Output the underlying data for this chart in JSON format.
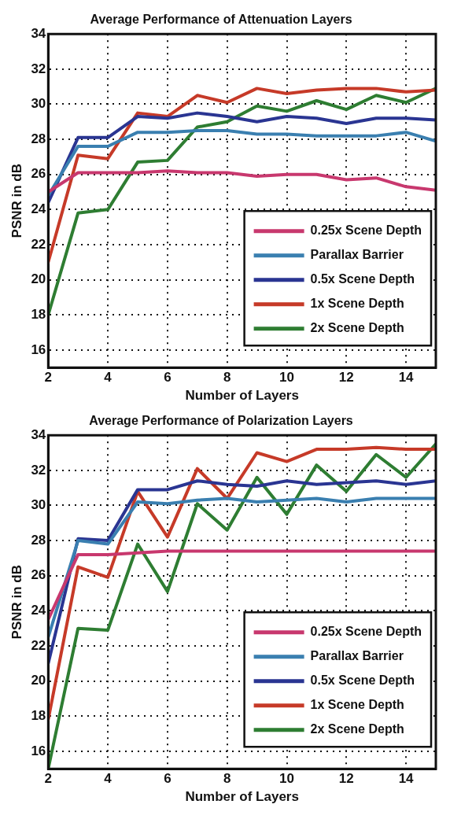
{
  "chart_data": [
    {
      "type": "line",
      "title": "Average Performance of Attenuation Layers",
      "xlabel": "Number of Layers",
      "ylabel": "PSNR in dB",
      "x": [
        2,
        3,
        4,
        5,
        6,
        7,
        8,
        9,
        10,
        11,
        12,
        13,
        14,
        15
      ],
      "xlim": [
        2,
        15
      ],
      "xticks": [
        2,
        4,
        6,
        8,
        10,
        12,
        14
      ],
      "ylim": [
        15,
        34
      ],
      "yticks": [
        16,
        18,
        20,
        22,
        24,
        26,
        28,
        30,
        32,
        34
      ],
      "grid": true,
      "legend": "bottom right",
      "marker": "none",
      "line_style": "solid",
      "series": [
        {
          "name": "0.25x Scene Depth",
          "color": "#c8386e",
          "values": [
            25.0,
            26.1,
            26.1,
            26.1,
            26.2,
            26.1,
            26.1,
            25.9,
            26.0,
            26.0,
            25.7,
            25.8,
            25.3,
            25.1
          ]
        },
        {
          "name": "Parallax Barrier",
          "color": "#3a7fb0",
          "values": [
            24.8,
            27.6,
            27.6,
            28.4,
            28.4,
            28.5,
            28.5,
            28.3,
            28.3,
            28.2,
            28.2,
            28.2,
            28.4,
            27.9
          ]
        },
        {
          "name": "0.5x Scene Depth",
          "color": "#2a3592",
          "values": [
            24.4,
            28.1,
            28.1,
            29.3,
            29.2,
            29.5,
            29.3,
            29.0,
            29.3,
            29.2,
            28.9,
            29.2,
            29.2,
            29.1
          ]
        },
        {
          "name": "1x Scene Depth",
          "color": "#c63a28",
          "values": [
            21.0,
            27.1,
            26.9,
            29.5,
            29.3,
            30.5,
            30.1,
            30.9,
            30.6,
            30.8,
            30.9,
            30.9,
            30.7,
            30.8
          ]
        },
        {
          "name": "2x Scene Depth",
          "color": "#2e7d32",
          "values": [
            18.0,
            23.8,
            24.0,
            26.7,
            26.8,
            28.7,
            29.0,
            29.9,
            29.6,
            30.2,
            29.7,
            30.5,
            30.1,
            30.9
          ]
        }
      ]
    },
    {
      "type": "line",
      "title": "Average Performance of Polarization Layers",
      "xlabel": "Number of Layers",
      "ylabel": "PSNR in dB",
      "x": [
        2,
        3,
        4,
        5,
        6,
        7,
        8,
        9,
        10,
        11,
        12,
        13,
        14,
        15
      ],
      "xlim": [
        2,
        15
      ],
      "xticks": [
        2,
        4,
        6,
        8,
        10,
        12,
        14
      ],
      "ylim": [
        15,
        34
      ],
      "yticks": [
        16,
        18,
        20,
        22,
        24,
        26,
        28,
        30,
        32,
        34
      ],
      "grid": true,
      "legend": "bottom right",
      "marker": "none",
      "line_style": "solid",
      "series": [
        {
          "name": "0.25x Scene Depth",
          "color": "#c8386e",
          "values": [
            23.5,
            27.2,
            27.2,
            27.3,
            27.4,
            27.4,
            27.4,
            27.4,
            27.4,
            27.4,
            27.4,
            27.4,
            27.4,
            27.4
          ]
        },
        {
          "name": "Parallax Barrier",
          "color": "#3a7fb0",
          "values": [
            22.5,
            28.0,
            27.8,
            30.2,
            30.1,
            30.3,
            30.4,
            30.2,
            30.3,
            30.4,
            30.2,
            30.4,
            30.4,
            30.4
          ]
        },
        {
          "name": "0.5x Scene Depth",
          "color": "#2a3592",
          "values": [
            21.0,
            28.1,
            28.0,
            30.9,
            30.9,
            31.4,
            31.2,
            31.1,
            31.4,
            31.2,
            31.3,
            31.4,
            31.2,
            31.4
          ]
        },
        {
          "name": "1x Scene Depth",
          "color": "#c63a28",
          "values": [
            17.8,
            26.5,
            25.9,
            30.8,
            28.2,
            32.1,
            30.4,
            33.0,
            32.5,
            33.2,
            33.2,
            33.3,
            33.2,
            33.2
          ]
        },
        {
          "name": "2x Scene Depth",
          "color": "#2e7d32",
          "values": [
            15.0,
            23.0,
            22.9,
            27.8,
            25.1,
            30.1,
            28.6,
            31.6,
            29.5,
            32.3,
            30.8,
            32.9,
            31.6,
            33.5
          ]
        }
      ]
    }
  ]
}
